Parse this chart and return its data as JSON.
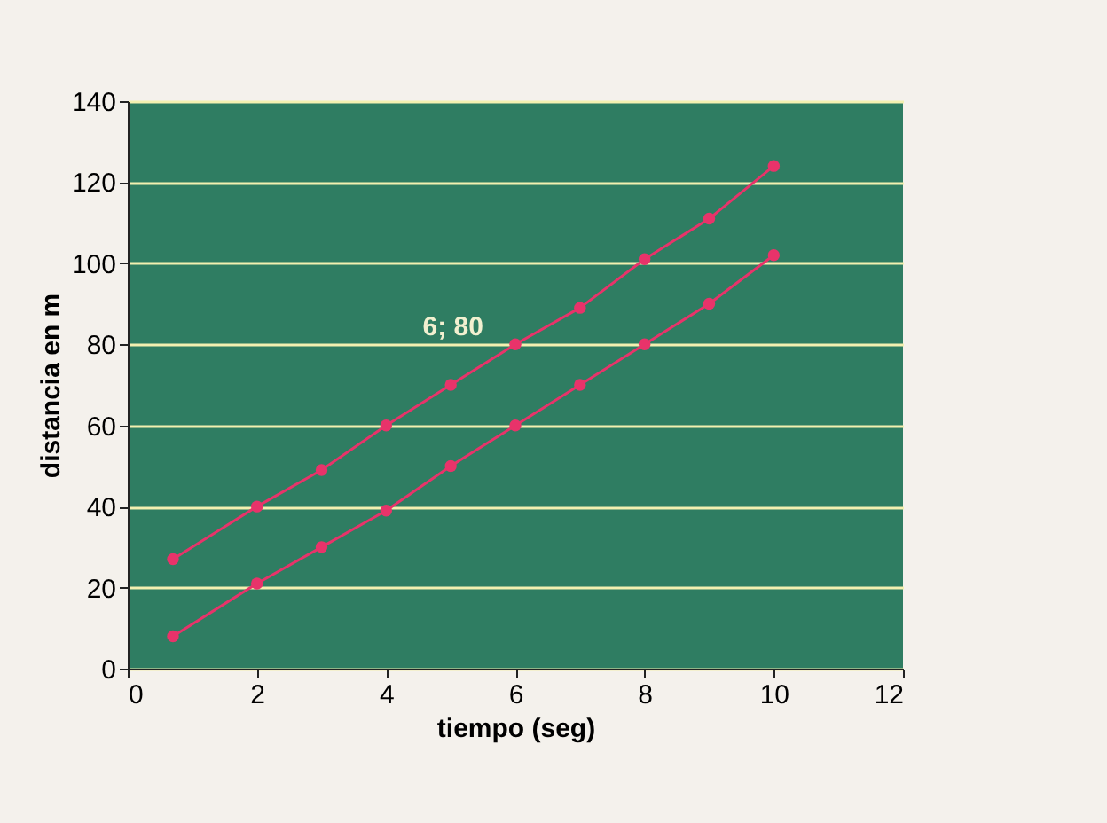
{
  "chart_data": {
    "type": "line",
    "xlabel": "tiempo (seg)",
    "ylabel": "distancia en m",
    "xlim": [
      0,
      12
    ],
    "xticks": [
      0,
      2,
      4,
      6,
      8,
      10,
      12
    ],
    "ylim": [
      0,
      140
    ],
    "yticks": [
      0,
      20,
      40,
      60,
      80,
      100,
      120,
      140
    ],
    "grid": "y",
    "marker": "circle",
    "line_style": "solid",
    "annotations": [
      {
        "text": "6; 80",
        "x": 6,
        "y": 80
      }
    ],
    "series": [
      {
        "color": "#e8336a",
        "x": [
          0.7,
          2,
          3,
          4,
          5,
          6,
          7,
          8,
          9,
          10
        ],
        "values": [
          27,
          40,
          49,
          60,
          70,
          80,
          89,
          101,
          111,
          124
        ]
      },
      {
        "color": "#e8336a",
        "x": [
          0.7,
          2,
          3,
          4,
          5,
          6,
          7,
          8,
          9,
          10
        ],
        "values": [
          8,
          21,
          30,
          39,
          50,
          60,
          70,
          80,
          90,
          102
        ]
      }
    ]
  }
}
